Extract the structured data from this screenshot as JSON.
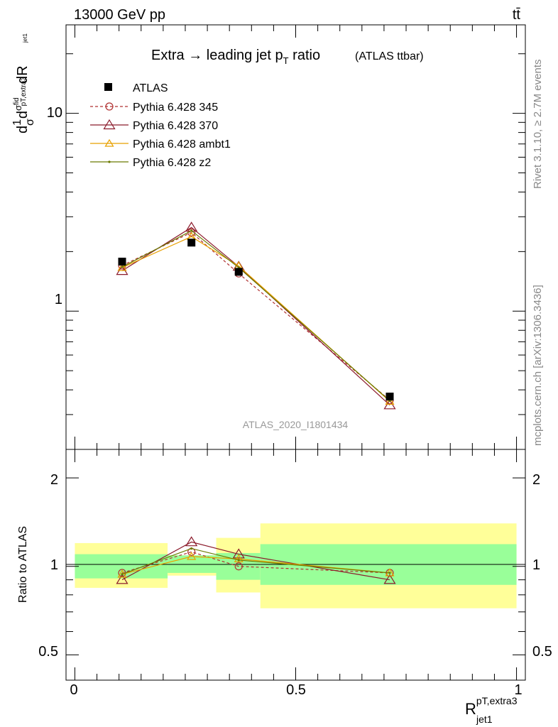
{
  "header": {
    "left": "13000 GeV pp",
    "right": "tt̄"
  },
  "side_labels": {
    "rivet": "Rivet 3.1.10, ≥ 2.7M events",
    "source": "mcplots.cern.ch [arXiv:1306.3436]"
  },
  "chart_data": [
    {
      "type": "line",
      "title_main": "Extra → leading jet p",
      "title_sub": "T",
      "title_tail": " ratio",
      "title_suffix": "(ATLAS ttbar)",
      "watermark": "ATLAS_2020_I1801434",
      "ylabel": "d1/σdσ^fid_pT,extra3 / dR_jet1",
      "yscale": "log",
      "ylim": [
        0.2,
        28
      ],
      "xlim": [
        -0.02,
        1.02
      ],
      "ytick_labels": [
        "1",
        "10"
      ],
      "legend_position": "top-left",
      "x": [
        0.107,
        0.264,
        0.371,
        0.713
      ],
      "series": [
        {
          "name": "ATLAS",
          "values": [
            1.78,
            2.22,
            1.58,
            0.37
          ],
          "errors": [
            0.04,
            0.05,
            0.04,
            0.01
          ],
          "color": "#000000",
          "marker": "square",
          "line": "none"
        },
        {
          "name": "Pythia 6.428 345",
          "values": [
            1.7,
            2.5,
            1.55,
            0.355
          ],
          "color": "#b03030",
          "marker": "circle",
          "line": "dashed"
        },
        {
          "name": "Pythia 6.428 370",
          "values": [
            1.6,
            2.65,
            1.68,
            0.335
          ],
          "color": "#8b1a2b",
          "marker": "triangle",
          "line": "solid"
        },
        {
          "name": "Pythia 6.428 ambt1",
          "values": [
            1.66,
            2.38,
            1.69,
            0.35
          ],
          "color": "#e8a000",
          "marker": "triangle",
          "line": "solid"
        },
        {
          "name": "Pythia 6.428 z2",
          "values": [
            1.67,
            2.55,
            1.66,
            0.352
          ],
          "color": "#6b7a00",
          "marker": "dot",
          "line": "solid"
        }
      ]
    },
    {
      "type": "line",
      "ylabel": "Ratio to ATLAS",
      "xlabel_main": "R",
      "xlabel_sup": "pT,extra3",
      "xlabel_sub": "jet1",
      "yscale": "log",
      "ylim": [
        0.41,
        2.5
      ],
      "xlim": [
        -0.02,
        1.02
      ],
      "ytick_labels": [
        "0.5",
        "1",
        "2"
      ],
      "xtick_labels": [
        "0",
        "0.5",
        "1"
      ],
      "bands": [
        {
          "x": [
            0.0,
            0.21
          ],
          "stat": [
            0.91,
            1.1
          ],
          "total": [
            0.845,
            1.2
          ]
        },
        {
          "x": [
            0.21,
            0.32
          ],
          "stat": [
            0.95,
            1.09
          ],
          "total": [
            0.93,
            1.09
          ]
        },
        {
          "x": [
            0.32,
            0.42
          ],
          "stat": [
            0.9,
            1.11
          ],
          "total": [
            0.815,
            1.25
          ]
        },
        {
          "x": [
            0.42,
            1.0
          ],
          "stat": [
            0.865,
            1.19
          ],
          "total": [
            0.72,
            1.4
          ]
        }
      ],
      "band_colors": {
        "stat": "#99ff99",
        "total": "#ffff99"
      },
      "series": [
        {
          "name": "Pythia 6.428 345",
          "values": [
            0.95,
            1.12,
            1.0,
            0.95
          ],
          "color": "#b03030",
          "marker": "circle",
          "line": "dashed"
        },
        {
          "name": "Pythia 6.428 370",
          "values": [
            0.9,
            1.21,
            1.1,
            0.9
          ],
          "color": "#8b1a2b",
          "marker": "triangle",
          "line": "solid"
        },
        {
          "name": "Pythia 6.428 ambt1",
          "values": [
            0.94,
            1.08,
            1.06,
            0.95
          ],
          "color": "#e8a000",
          "marker": "triangle",
          "line": "solid"
        },
        {
          "name": "Pythia 6.428 z2",
          "values": [
            0.94,
            1.15,
            1.05,
            0.95
          ],
          "color": "#6b7a00",
          "marker": "dot",
          "line": "solid"
        }
      ]
    }
  ]
}
